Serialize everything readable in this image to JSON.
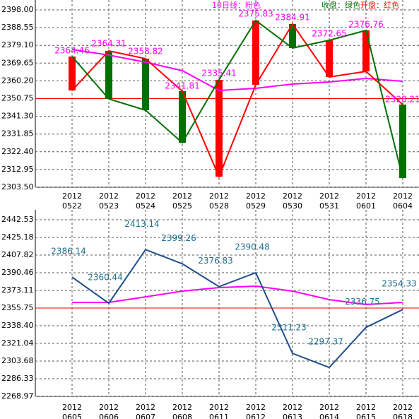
{
  "chart_data": [
    {
      "type": "candlestick",
      "categories": [
        [
          "2012",
          "0522"
        ],
        [
          "2012",
          "0523"
        ],
        [
          "2012",
          "0524"
        ],
        [
          "2012",
          "0525"
        ],
        [
          "2012",
          "0528"
        ],
        [
          "2012",
          "0529"
        ],
        [
          "2012",
          "0530"
        ],
        [
          "2012",
          "0531"
        ],
        [
          "2012",
          "0601"
        ],
        [
          "2012",
          "0604"
        ]
      ],
      "series": [
        {
          "name": "开盘：红色",
          "color": "#ff0000",
          "values": [
            2355.08,
            2376.16,
            2372.02,
            2354.7,
            2309.15,
            2358.09,
            2390.47,
            2362.23,
            2365.24,
            2347.55
          ]
        },
        {
          "name": "收盘：绿色",
          "color": "#007000",
          "values": [
            2373.15,
            2350.56,
            2344.54,
            2327.22,
            2360.73,
            2392.35,
            2377.67,
            2381.81,
            2387.08,
            2308.39
          ]
        },
        {
          "name": "10日线：粉色",
          "color": "#ff00ff",
          "values": [
            2376.92,
            2373.9,
            2370.14,
            2365.62,
            2355.08,
            2356.21,
            2358.47,
            2359.6,
            2361.48,
            2359.97
          ]
        }
      ],
      "point_labels": [
        2364.46,
        2364.31,
        2358.82,
        2341.81,
        2335.41,
        2375.83,
        2384.91,
        2372.65,
        2376.76,
        2328.21
      ],
      "reference_line": 2350.75,
      "ylim": [
        2303.5,
        2398.0
      ],
      "yticks": [
        {
          "value": 2398.0,
          "label": "2398.00"
        },
        2388.55,
        {
          "value": 2379.1,
          "label": "2379.10"
        },
        2369.65,
        {
          "value": 2360.2,
          "label": "2360.20"
        },
        2350.75,
        {
          "value": 2341.3,
          "label": "2341.30"
        },
        2331.85,
        {
          "value": 2322.4,
          "label": "2322.40"
        },
        2312.95,
        {
          "value": 2303.5,
          "label": "2303.50"
        }
      ],
      "grid": true
    },
    {
      "type": "line",
      "categories": [
        [
          "2012",
          "0605"
        ],
        [
          "2012",
          "0606"
        ],
        [
          "2012",
          "0607"
        ],
        [
          "2012",
          "0608"
        ],
        [
          "2012",
          "0611"
        ],
        [
          "2012",
          "0612"
        ],
        [
          "2012",
          "0613"
        ],
        [
          "2012",
          "0614"
        ],
        [
          "2012",
          "0615"
        ],
        [
          "2012",
          "0618"
        ]
      ],
      "series": [
        {
          "color": "#1f4e8c",
          "values": [
            2386.14,
            2360.44,
            2413.14,
            2399.26,
            2376.83,
            2390.48,
            2311.23,
            2297.37,
            2336.75,
            2354.33
          ]
        },
        {
          "color": "#ff00ff",
          "values": [
            2361.3,
            2361.3,
            2366.8,
            2372.4,
            2375.9,
            2377.3,
            2372.4,
            2364.1,
            2359.2,
            2361.3
          ]
        }
      ],
      "reference_line": 2355.75,
      "ylim": [
        2268.97,
        2442.53
      ],
      "yticks": [
        2442.53,
        2425.18,
        2407.82,
        2390.46,
        2373.11,
        2355.75,
        {
          "value": 2338.4,
          "label": "2338.40"
        },
        2321.04,
        2303.68,
        2286.33,
        2268.97
      ],
      "grid": true
    }
  ]
}
